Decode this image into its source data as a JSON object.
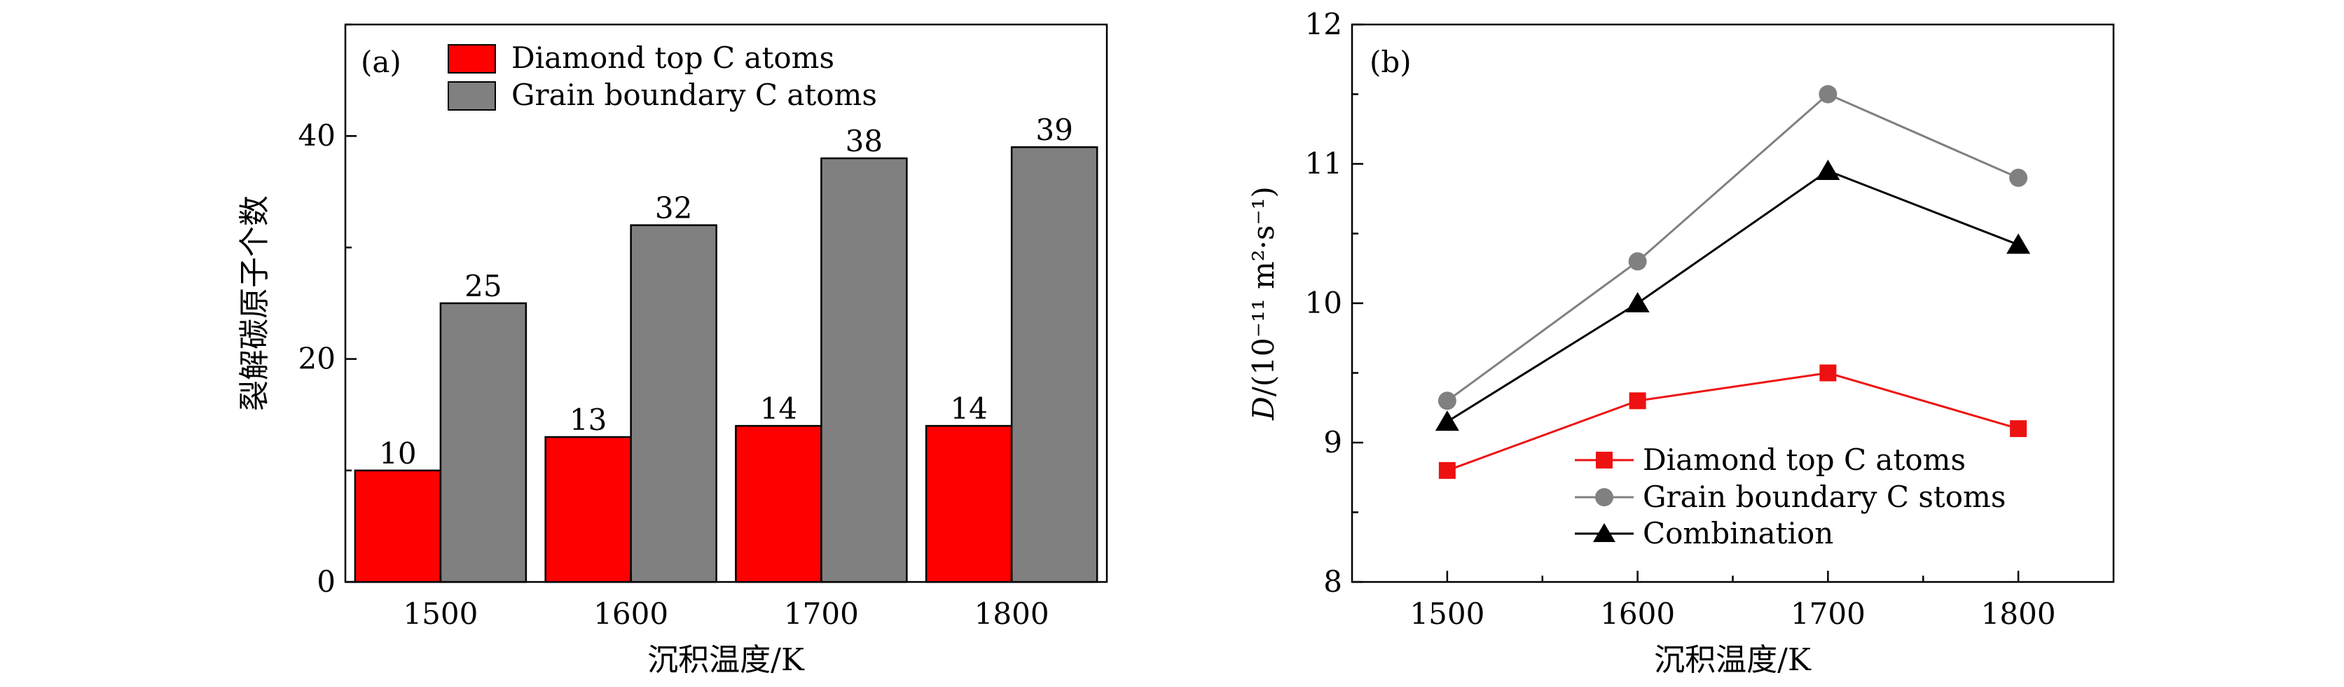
{
  "chart_data": [
    {
      "type": "bar",
      "panel_label": "(a)",
      "categories": [
        "1500",
        "1600",
        "1700",
        "1800"
      ],
      "series": [
        {
          "name": "Diamond top C atoms",
          "values": [
            10,
            13,
            14,
            14
          ],
          "color": "#ff0000"
        },
        {
          "name": "Grain boundary C atoms",
          "values": [
            25,
            32,
            38,
            39
          ],
          "color": "#808080"
        }
      ],
      "xlabel": "沉积温度/K",
      "ylabel": "裂解碳原子个数",
      "ylim": [
        0,
        50
      ],
      "yticks": [
        0,
        20,
        40
      ],
      "legend_position": "top-left",
      "grid": false
    },
    {
      "type": "line",
      "panel_label": "(b)",
      "x": [
        1500,
        1600,
        1700,
        1800
      ],
      "xticks": [
        "1500",
        "1600",
        "1700",
        "1800"
      ],
      "series": [
        {
          "name": "Diamond top C atoms",
          "values": [
            8.8,
            9.3,
            9.5,
            9.1
          ],
          "color": "#ee1111",
          "marker": "square"
        },
        {
          "name": "Grain boundary C stoms",
          "values": [
            9.3,
            10.3,
            11.5,
            10.9
          ],
          "color": "#808080",
          "marker": "circle"
        },
        {
          "name": "Combination",
          "values": [
            9.15,
            10.0,
            10.95,
            10.42
          ],
          "color": "#000000",
          "marker": "triangle"
        }
      ],
      "xlabel": "沉积温度/K",
      "ylabel_prefix": "D",
      "ylabel_units": "/(10⁻¹¹ m²·s⁻¹)",
      "xlim": [
        1450,
        1850
      ],
      "ylim": [
        8,
        12
      ],
      "yticks": [
        8,
        9,
        10,
        11,
        12
      ],
      "legend_position": "bottom-right",
      "grid": false
    }
  ]
}
